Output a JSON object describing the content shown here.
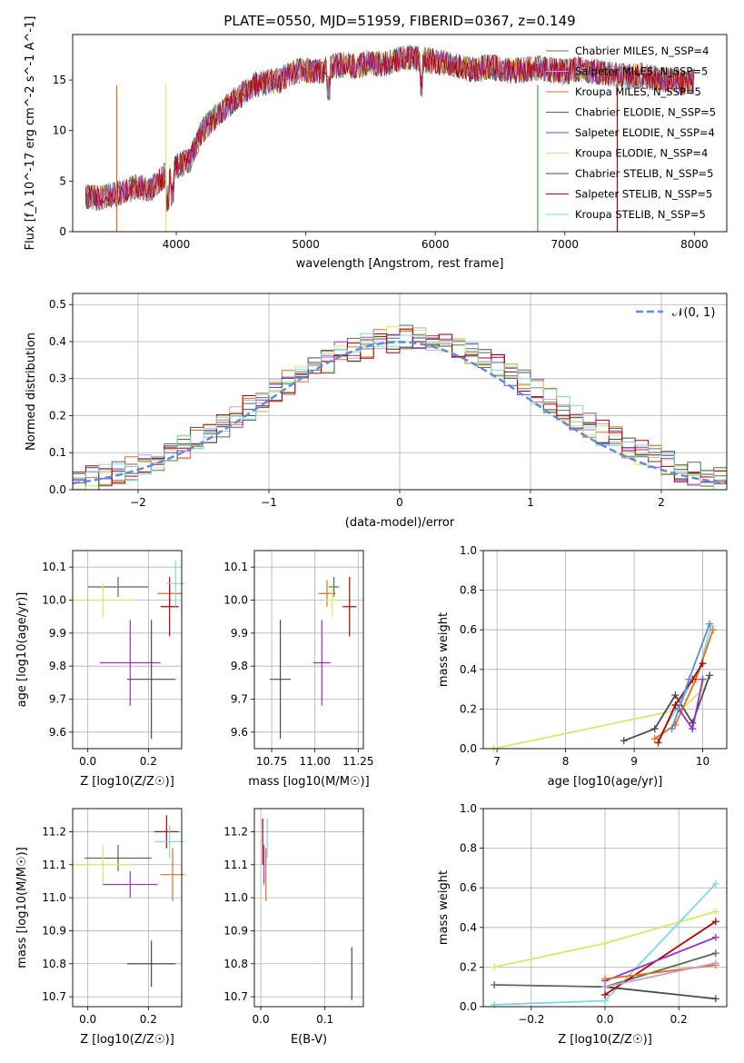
{
  "figure_title": "PLATE=0550, MJD=51959, FIBERID=0367, z=0.149",
  "colors": {
    "chabrier_miles": "#607060",
    "salpeter_miles": "#c8a2c8",
    "kroupa_miles": "#e07020",
    "chabrier_elodie": "#507050",
    "salpeter_elodie": "#9932cc",
    "kroupa_elodie": "#d4ea6b",
    "chabrier_stelib": "#4a4a4a",
    "salpeter_stelib": "#b00000",
    "kroupa_stelib": "#7fd8de",
    "gauss": "#5b8fd9"
  },
  "chart_data": [
    {
      "type": "line",
      "title": "PLATE=0550, MJD=51959, FIBERID=0367, z=0.149",
      "xlabel": "wavelength [Angstrom, rest frame]",
      "ylabel": "Flux [f_λ 10^-17 erg cm^-2 s^-1 A^-1]",
      "xlim": [
        3200,
        8250
      ],
      "ylim": [
        0,
        19.5
      ],
      "xticks": [
        "4000",
        "5000",
        "6000",
        "7000",
        "8000"
      ],
      "yticks": [
        "0",
        "5",
        "10",
        "15"
      ],
      "grid": false,
      "legend_position": "top-right",
      "legend": [
        "Chabrier MILES, N_SSP=4",
        "Salpeter MILES, N_SSP=5",
        "Kroupa MILES, N_SSP=5",
        "Chabrier ELODIE, N_SSP=5",
        "Salpeter ELODIE, N_SSP=4",
        "Kroupa ELODIE, N_SSP=4",
        "Chabrier STELIB, N_SSP=5",
        "Salpeter STELIB, N_SSP=5",
        "Kroupa STELIB, N_SSP=5"
      ],
      "x": [
        3300,
        3400,
        3500,
        3600,
        3700,
        3800,
        3900,
        4000,
        4100,
        4200,
        4300,
        4400,
        4500,
        4600,
        4700,
        4800,
        4900,
        5000,
        5100,
        5200,
        5300,
        5400,
        5500,
        5600,
        5700,
        5800,
        5900,
        6000,
        6100,
        6200,
        6300,
        6400,
        6500,
        6600,
        6700,
        6800,
        6900,
        7000,
        7100,
        7200,
        7300,
        7400,
        7500,
        7600,
        7700,
        7800,
        7900,
        8000
      ],
      "y": [
        3.5,
        3.3,
        3.6,
        4.0,
        4.5,
        4.2,
        5.5,
        6.5,
        7.0,
        10.0,
        11.3,
        12.5,
        13.5,
        14.5,
        14.8,
        15.0,
        15.8,
        16.0,
        15.8,
        16.3,
        16.5,
        16.3,
        16.8,
        16.5,
        17.0,
        17.2,
        17.0,
        16.8,
        16.6,
        16.2,
        16.0,
        16.3,
        16.1,
        15.9,
        16.0,
        16.2,
        16.0,
        15.8,
        16.1,
        15.9,
        15.7,
        15.5,
        15.3,
        15.5,
        15.2,
        15.0,
        14.8,
        14.9
      ]
    },
    {
      "type": "area",
      "xlabel": "(data-model)/error",
      "ylabel": "Normed distribution",
      "xlim": [
        -2.5,
        2.5
      ],
      "ylim": [
        0,
        0.53
      ],
      "xticks": [
        "−2",
        "−1",
        "0",
        "1",
        "2"
      ],
      "yticks": [
        "0.0",
        "0.1",
        "0.2",
        "0.3",
        "0.4",
        "0.5"
      ],
      "grid": true,
      "legend_position": "top-right",
      "legend": [
        "𝒩(0, 1)"
      ],
      "bin_width": 0.1,
      "bins_start": -2.5,
      "series_values": [
        0.02,
        0.03,
        0.035,
        0.045,
        0.055,
        0.07,
        0.085,
        0.1,
        0.115,
        0.135,
        0.155,
        0.175,
        0.195,
        0.22,
        0.24,
        0.265,
        0.29,
        0.31,
        0.33,
        0.35,
        0.365,
        0.38,
        0.39,
        0.4,
        0.405,
        0.41,
        0.405,
        0.4,
        0.39,
        0.38,
        0.365,
        0.35,
        0.33,
        0.31,
        0.29,
        0.265,
        0.24,
        0.22,
        0.195,
        0.175,
        0.155,
        0.135,
        0.115,
        0.1,
        0.085,
        0.07,
        0.055,
        0.045,
        0.035,
        0.03
      ]
    },
    {
      "type": "scatter",
      "xlabel": "Z [log10(Z/Z☉)]",
      "ylabel": "age [log10(age/yr)]",
      "xlim": [
        -0.05,
        0.31
      ],
      "ylim": [
        9.55,
        10.15
      ],
      "xticks": [
        "0.0",
        "0.2"
      ],
      "yticks": [
        "9.6",
        "9.7",
        "9.8",
        "9.9",
        "10.0",
        "10.1"
      ],
      "grid": true,
      "points": [
        {
          "series": "chabrier_elodie",
          "x": 0.1,
          "y": 10.04,
          "xerr": 0.1,
          "yerr": 0.03
        },
        {
          "series": "kroupa_elodie",
          "x": 0.05,
          "y": 10.0,
          "xerr": 0.1,
          "yerr": 0.05
        },
        {
          "series": "salpeter_elodie",
          "x": 0.14,
          "y": 9.81,
          "xerr": 0.1,
          "yerr": 0.13
        },
        {
          "series": "chabrier_stelib",
          "x": 0.21,
          "y": 9.76,
          "xerr": 0.08,
          "yerr": 0.18
        },
        {
          "series": "kroupa_miles",
          "x": 0.27,
          "y": 10.02,
          "xerr": 0.04,
          "yerr": 0.04
        },
        {
          "series": "salpeter_stelib",
          "x": 0.27,
          "y": 9.98,
          "xerr": 0.03,
          "yerr": 0.09
        },
        {
          "series": "kroupa_stelib",
          "x": 0.29,
          "y": 10.05,
          "xerr": 0.03,
          "yerr": 0.07
        }
      ]
    },
    {
      "type": "scatter",
      "xlabel": "mass [log10(M/M☉)]",
      "ylabel": "",
      "xlim": [
        10.65,
        11.28
      ],
      "ylim": [
        9.55,
        10.15
      ],
      "xticks": [
        "10.75",
        "11.00",
        "11.25"
      ],
      "yticks": [
        "9.6",
        "9.7",
        "9.8",
        "9.9",
        "10.0",
        "10.1"
      ],
      "grid": true,
      "points": [
        {
          "series": "chabrier_stelib",
          "x": 10.8,
          "y": 9.76,
          "xerr": 0.06,
          "yerr": 0.18
        },
        {
          "series": "salpeter_elodie",
          "x": 11.04,
          "y": 9.81,
          "xerr": 0.05,
          "yerr": 0.13
        },
        {
          "series": "kroupa_miles",
          "x": 11.07,
          "y": 10.02,
          "xerr": 0.05,
          "yerr": 0.04
        },
        {
          "series": "chabrier_elodie",
          "x": 11.11,
          "y": 10.04,
          "xerr": 0.03,
          "yerr": 0.03
        },
        {
          "series": "kroupa_elodie",
          "x": 11.1,
          "y": 10.0,
          "xerr": 0.04,
          "yerr": 0.05
        },
        {
          "series": "salpeter_stelib",
          "x": 11.2,
          "y": 9.98,
          "xerr": 0.04,
          "yerr": 0.09
        }
      ]
    },
    {
      "type": "line",
      "xlabel": "age [log10(age/yr)]",
      "ylabel": "mass weight",
      "xlim": [
        6.8,
        10.35
      ],
      "ylim": [
        0,
        1.0
      ],
      "xticks": [
        "7",
        "8",
        "9",
        "10"
      ],
      "yticks": [
        "0.0",
        "0.2",
        "0.4",
        "0.6",
        "0.8",
        "1.0"
      ],
      "grid": true,
      "series": [
        {
          "key": "kroupa_elodie",
          "x": [
            6.95,
            9.7,
            10.0
          ],
          "y": [
            0.0,
            0.2,
            0.3
          ]
        },
        {
          "key": "chabrier_stelib",
          "x": [
            8.85,
            9.3,
            9.6,
            9.85,
            10.1
          ],
          "y": [
            0.04,
            0.1,
            0.27,
            0.13,
            0.37
          ]
        },
        {
          "key": "kroupa_stelib",
          "x": [
            9.35,
            9.7,
            9.95,
            10.12
          ],
          "y": [
            0.05,
            0.25,
            0.4,
            0.62
          ]
        },
        {
          "key": "kroupa_miles",
          "x": [
            9.3,
            9.6,
            9.9,
            10.15
          ],
          "y": [
            0.05,
            0.12,
            0.35,
            0.6
          ]
        },
        {
          "key": "salpeter_stelib",
          "x": [
            9.35,
            9.6,
            9.85,
            10.0
          ],
          "y": [
            0.03,
            0.22,
            0.35,
            0.43
          ]
        },
        {
          "key": "salpeter_elodie",
          "x": [
            9.65,
            9.85,
            10.0
          ],
          "y": [
            0.2,
            0.1,
            0.35
          ]
        },
        {
          "key": "gauss",
          "x": [
            9.55,
            9.8,
            10.1
          ],
          "y": [
            0.1,
            0.35,
            0.63
          ]
        }
      ]
    },
    {
      "type": "scatter",
      "xlabel": "Z [log10(Z/Z☉)]",
      "ylabel": "mass [log10(M/M☉)]",
      "xlim": [
        -0.05,
        0.31
      ],
      "ylim": [
        10.67,
        11.27
      ],
      "xticks": [
        "0.0",
        "0.2"
      ],
      "yticks": [
        "10.7",
        "10.8",
        "10.9",
        "11.0",
        "11.1",
        "11.2"
      ],
      "grid": true,
      "points": [
        {
          "series": "chabrier_elodie",
          "x": 0.1,
          "y": 11.12,
          "xerr": 0.11,
          "yerr": 0.04
        },
        {
          "series": "kroupa_elodie",
          "x": 0.05,
          "y": 11.1,
          "xerr": 0.1,
          "yerr": 0.06
        },
        {
          "series": "salpeter_elodie",
          "x": 0.14,
          "y": 11.04,
          "xerr": 0.09,
          "yerr": 0.04
        },
        {
          "series": "chabrier_stelib",
          "x": 0.21,
          "y": 10.8,
          "xerr": 0.08,
          "yerr": 0.07
        },
        {
          "series": "salpeter_stelib",
          "x": 0.26,
          "y": 11.2,
          "xerr": 0.04,
          "yerr": 0.05
        },
        {
          "series": "kroupa_miles",
          "x": 0.28,
          "y": 11.07,
          "xerr": 0.04,
          "yerr": 0.08
        },
        {
          "series": "kroupa_stelib",
          "x": 0.27,
          "y": 11.17,
          "xerr": 0.05,
          "yerr": 0.05
        }
      ]
    },
    {
      "type": "scatter",
      "xlabel": "E(B-V)",
      "ylabel": "",
      "xlim": [
        -0.01,
        0.16
      ],
      "ylim": [
        10.67,
        11.27
      ],
      "xticks": [
        "0.0",
        "0.1"
      ],
      "yticks": [
        "10.7",
        "10.8",
        "10.9",
        "11.0",
        "11.1",
        "11.2"
      ],
      "grid": true,
      "points": [
        {
          "series": "salpeter_stelib",
          "x": 0.003,
          "y": 11.17,
          "xerr": 0,
          "yerr": 0.07
        },
        {
          "series": "salpeter_elodie",
          "x": 0.005,
          "y": 11.1,
          "xerr": 0,
          "yerr": 0.06
        },
        {
          "series": "kroupa_miles",
          "x": 0.008,
          "y": 11.07,
          "xerr": 0,
          "yerr": 0.08
        },
        {
          "series": "kroupa_stelib",
          "x": 0.01,
          "y": 11.18,
          "xerr": 0,
          "yerr": 0.06
        },
        {
          "series": "chabrier_stelib",
          "x": 0.142,
          "y": 10.77,
          "xerr": 0,
          "yerr": 0.08
        }
      ]
    },
    {
      "type": "line",
      "xlabel": "Z [log10(Z/Z☉)]",
      "ylabel": "mass weight",
      "xlim": [
        -0.33,
        0.33
      ],
      "ylim": [
        0,
        1.0
      ],
      "xticks": [
        "−0.2",
        "0.0",
        "0.2"
      ],
      "yticks": [
        "0.0",
        "0.2",
        "0.4",
        "0.6",
        "0.8",
        "1.0"
      ],
      "grid": true,
      "series": [
        {
          "key": "kroupa_elodie",
          "x": [
            -0.3,
            0.0,
            0.3
          ],
          "y": [
            0.2,
            0.32,
            0.48
          ]
        },
        {
          "key": "chabrier_elodie",
          "x": [
            -0.3,
            0.0,
            0.3
          ],
          "y": [
            0.11,
            0.1,
            0.27
          ]
        },
        {
          "key": "kroupa_stelib",
          "x": [
            -0.3,
            0.0,
            0.3
          ],
          "y": [
            0.01,
            0.03,
            0.62
          ]
        },
        {
          "key": "chabrier_stelib",
          "x": [
            0.0,
            0.3
          ],
          "y": [
            0.1,
            0.04
          ]
        },
        {
          "key": "salpeter_stelib",
          "x": [
            0.0,
            0.3
          ],
          "y": [
            0.06,
            0.43
          ]
        },
        {
          "key": "salpeter_elodie",
          "x": [
            0.0,
            0.3
          ],
          "y": [
            0.13,
            0.35
          ]
        },
        {
          "key": "kroupa_miles",
          "x": [
            0.0,
            0.3
          ],
          "y": [
            0.14,
            0.21
          ]
        },
        {
          "key": "salpeter_miles",
          "x": [
            0.0,
            0.3
          ],
          "y": [
            0.1,
            0.22
          ]
        }
      ]
    }
  ]
}
